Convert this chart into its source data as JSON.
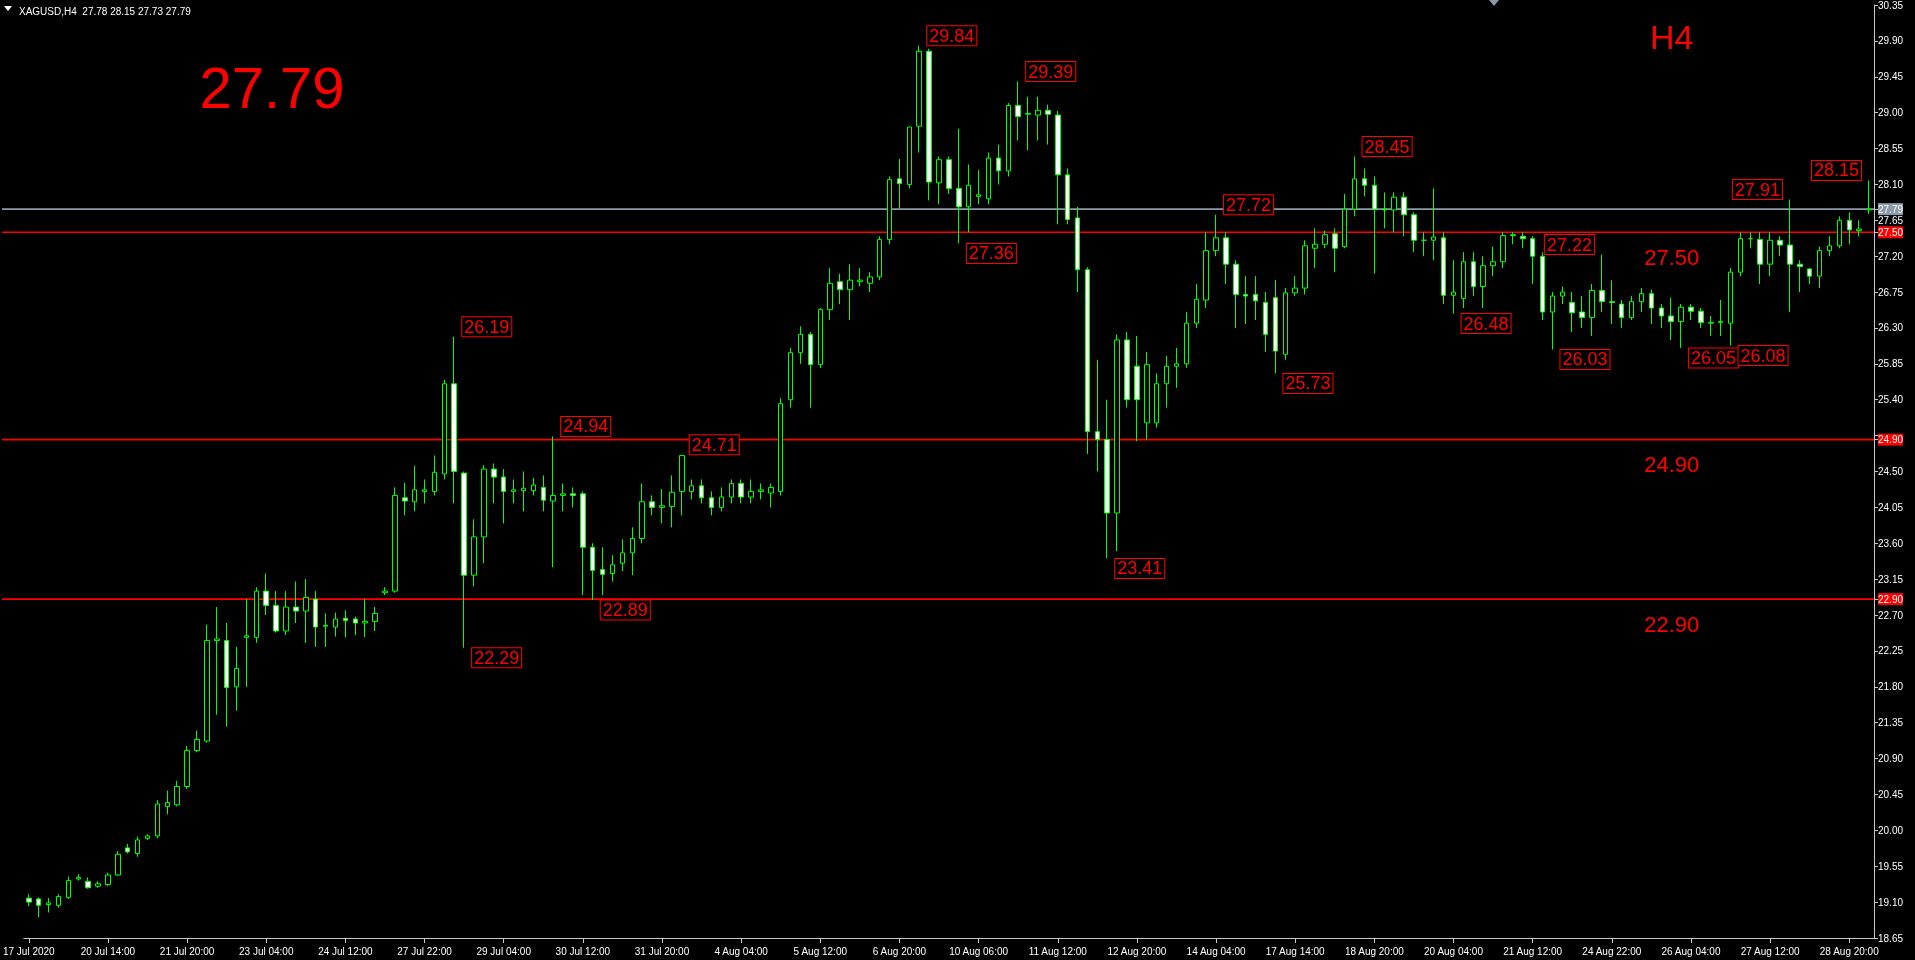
{
  "chart_data": {
    "type": "candlestick",
    "title": "XAGUSD,H4  27.78 28.15 27.73 27.79",
    "color": "#00ff00",
    "categories": [
      "17 Jul 2020",
      null,
      null,
      null,
      null,
      null,
      null,
      null,
      "20 Jul 14:00",
      null,
      null,
      null,
      null,
      null,
      null,
      null,
      "21 Jul 20:00",
      null,
      null,
      null,
      null,
      null,
      null,
      null,
      "23 Jul 04:00",
      null,
      null,
      null,
      null,
      null,
      null,
      null,
      "24 Jul 12:00",
      null,
      null,
      null,
      null,
      null,
      null,
      null,
      "27 Jul 22:00",
      null,
      null,
      null,
      null,
      null,
      null,
      null,
      "29 Jul 04:00",
      null,
      null,
      null,
      null,
      null,
      null,
      null,
      "30 Jul 12:00",
      null,
      null,
      null,
      null,
      null,
      null,
      null,
      "31 Jul 20:00",
      null,
      null,
      null,
      null,
      null,
      null,
      null,
      "4 Aug 04:00",
      null,
      null,
      null,
      null,
      null,
      null,
      null,
      "5 Aug 12:00",
      null,
      null,
      null,
      null,
      null,
      null,
      null,
      "6 Aug 20:00",
      null,
      null,
      null,
      null,
      null,
      null,
      null,
      "10 Aug 06:00",
      null,
      null,
      null,
      null,
      null,
      null,
      null,
      "11 Aug 12:00",
      null,
      null,
      null,
      null,
      null,
      null,
      null,
      "12 Aug 20:00",
      null,
      null,
      null,
      null,
      null,
      null,
      null,
      "14 Aug 04:00",
      null,
      null,
      null,
      null,
      null,
      null,
      null,
      "17 Aug 14:00",
      null,
      null,
      null,
      null,
      null,
      null,
      null,
      "18 Aug 20:00",
      null,
      null,
      null,
      null,
      null,
      null,
      null,
      "20 Aug 04:00",
      null,
      null,
      null,
      null,
      null,
      null,
      null,
      "21 Aug 12:00",
      null,
      null,
      null,
      null,
      null,
      null,
      null,
      "24 Aug 22:00",
      null,
      null,
      null,
      null,
      null,
      null,
      null,
      "26 Aug 04:00",
      null,
      null,
      null,
      null,
      null,
      null,
      null,
      "27 Aug 12:00",
      null,
      null,
      null,
      null,
      null,
      null,
      null,
      "28 Aug 20:00",
      null,
      null
    ],
    "ohlc": [
      [
        19.15,
        19.2,
        19.05,
        19.1
      ],
      [
        19.14,
        19.16,
        18.91,
        19.06
      ],
      [
        19.07,
        19.15,
        18.97,
        19.09
      ],
      [
        19.06,
        19.2,
        19.03,
        19.17
      ],
      [
        19.16,
        19.42,
        19.14,
        19.37
      ],
      [
        19.39,
        19.45,
        19.37,
        19.41
      ],
      [
        19.36,
        19.41,
        19.27,
        19.28
      ],
      [
        19.3,
        19.36,
        19.28,
        19.33
      ],
      [
        19.32,
        19.47,
        19.3,
        19.44
      ],
      [
        19.44,
        19.74,
        19.43,
        19.7
      ],
      [
        19.78,
        19.83,
        19.71,
        19.73
      ],
      [
        19.71,
        19.92,
        19.67,
        19.88
      ],
      [
        19.9,
        19.95,
        19.88,
        19.93
      ],
      [
        19.93,
        20.38,
        19.9,
        20.33
      ],
      [
        20.3,
        20.5,
        20.2,
        20.35
      ],
      [
        20.32,
        20.62,
        20.3,
        20.55
      ],
      [
        20.55,
        21.06,
        20.52,
        21.0
      ],
      [
        21.0,
        21.25,
        20.98,
        21.14
      ],
      [
        21.12,
        22.58,
        21.1,
        22.38
      ],
      [
        22.38,
        22.8,
        21.45,
        22.4
      ],
      [
        22.38,
        22.6,
        21.3,
        21.79
      ],
      [
        21.8,
        22.3,
        21.5,
        22.03
      ],
      [
        22.42,
        22.9,
        21.8,
        22.44
      ],
      [
        22.42,
        23.05,
        22.35,
        23.0
      ],
      [
        23.0,
        23.22,
        22.7,
        22.82
      ],
      [
        22.82,
        23.0,
        22.48,
        22.5
      ],
      [
        22.5,
        23.0,
        22.45,
        22.8
      ],
      [
        22.8,
        23.12,
        22.6,
        22.75
      ],
      [
        22.75,
        23.15,
        22.35,
        22.92
      ],
      [
        22.9,
        23.0,
        22.3,
        22.55
      ],
      [
        22.56,
        22.72,
        22.3,
        22.57
      ],
      [
        22.55,
        22.73,
        22.43,
        22.65
      ],
      [
        22.66,
        22.76,
        22.42,
        22.63
      ],
      [
        22.65,
        22.68,
        22.45,
        22.6
      ],
      [
        22.6,
        22.9,
        22.42,
        22.62
      ],
      [
        22.62,
        22.8,
        22.5,
        22.72
      ],
      [
        22.98,
        23.05,
        22.95,
        23.0
      ],
      [
        23.0,
        24.3,
        22.98,
        24.2
      ],
      [
        24.17,
        24.36,
        23.95,
        24.13
      ],
      [
        24.12,
        24.57,
        24.0,
        24.27
      ],
      [
        24.25,
        24.4,
        24.1,
        24.27
      ],
      [
        24.25,
        24.7,
        24.2,
        24.49
      ],
      [
        24.47,
        25.65,
        24.4,
        25.6
      ],
      [
        25.6,
        26.19,
        24.1,
        24.5
      ],
      [
        24.48,
        24.5,
        22.29,
        23.2
      ],
      [
        23.2,
        23.9,
        23.06,
        23.68
      ],
      [
        23.68,
        24.58,
        23.35,
        24.53
      ],
      [
        24.53,
        24.6,
        24.1,
        24.43
      ],
      [
        24.43,
        24.53,
        23.85,
        24.25
      ],
      [
        24.25,
        24.4,
        24.1,
        24.27
      ],
      [
        24.26,
        24.5,
        24.0,
        24.29
      ],
      [
        24.26,
        24.42,
        24.2,
        24.33
      ],
      [
        24.3,
        24.45,
        24.0,
        24.14
      ],
      [
        24.13,
        24.94,
        23.3,
        24.2
      ],
      [
        24.2,
        24.35,
        24.0,
        24.22
      ],
      [
        24.22,
        24.3,
        24.05,
        24.2
      ],
      [
        24.22,
        24.25,
        22.95,
        23.55
      ],
      [
        23.55,
        23.6,
        22.89,
        23.26
      ],
      [
        23.27,
        23.55,
        22.95,
        23.21
      ],
      [
        23.22,
        23.45,
        23.12,
        23.33
      ],
      [
        23.35,
        23.65,
        23.25,
        23.48
      ],
      [
        23.48,
        23.8,
        23.2,
        23.66
      ],
      [
        23.66,
        24.35,
        23.6,
        24.12
      ],
      [
        24.12,
        24.2,
        23.95,
        24.05
      ],
      [
        24.05,
        24.28,
        23.85,
        24.07
      ],
      [
        24.06,
        24.45,
        23.8,
        24.24
      ],
      [
        24.25,
        24.71,
        23.95,
        24.7
      ],
      [
        24.25,
        24.4,
        24.15,
        24.32
      ],
      [
        24.32,
        24.4,
        24.1,
        24.17
      ],
      [
        24.17,
        24.25,
        23.95,
        24.05
      ],
      [
        24.05,
        24.3,
        24.0,
        24.18
      ],
      [
        24.18,
        24.4,
        24.1,
        24.35
      ],
      [
        24.35,
        24.4,
        24.1,
        24.18
      ],
      [
        24.18,
        24.4,
        24.1,
        24.25
      ],
      [
        24.25,
        24.35,
        24.15,
        24.27
      ],
      [
        24.23,
        24.35,
        24.05,
        24.3
      ],
      [
        24.25,
        25.42,
        24.2,
        25.35
      ],
      [
        25.4,
        26.05,
        25.3,
        25.99
      ],
      [
        25.99,
        26.32,
        25.85,
        26.22
      ],
      [
        26.22,
        26.25,
        25.3,
        25.84
      ],
      [
        25.84,
        26.55,
        25.8,
        26.53
      ],
      [
        26.53,
        27.05,
        26.4,
        26.86
      ],
      [
        26.88,
        26.98,
        26.6,
        26.78
      ],
      [
        26.78,
        27.1,
        26.4,
        26.9
      ],
      [
        26.88,
        27.05,
        26.82,
        26.9
      ],
      [
        26.86,
        27.0,
        26.75,
        26.94
      ],
      [
        26.94,
        27.45,
        26.9,
        27.41
      ],
      [
        27.41,
        28.2,
        27.35,
        28.16
      ],
      [
        28.17,
        28.42,
        27.8,
        28.11
      ],
      [
        28.1,
        28.82,
        28.05,
        28.82
      ],
      [
        28.83,
        29.84,
        28.5,
        29.77
      ],
      [
        29.77,
        29.8,
        27.9,
        28.13
      ],
      [
        28.12,
        28.45,
        27.85,
        28.41
      ],
      [
        28.41,
        28.45,
        27.98,
        28.05
      ],
      [
        28.05,
        28.8,
        27.36,
        27.82
      ],
      [
        27.82,
        28.35,
        27.5,
        28.09
      ],
      [
        27.95,
        28.28,
        27.85,
        27.97
      ],
      [
        27.92,
        28.5,
        27.85,
        28.43
      ],
      [
        28.43,
        28.6,
        28.1,
        28.27
      ],
      [
        28.27,
        29.12,
        28.2,
        29.09
      ],
      [
        29.09,
        29.39,
        28.65,
        28.95
      ],
      [
        28.98,
        29.2,
        28.53,
        28.99
      ],
      [
        28.97,
        29.2,
        28.65,
        29.03
      ],
      [
        29.03,
        29.1,
        28.6,
        28.98
      ],
      [
        28.97,
        29.02,
        27.6,
        28.22
      ],
      [
        28.22,
        28.3,
        27.6,
        27.66
      ],
      [
        27.68,
        27.82,
        26.75,
        27.03
      ],
      [
        27.03,
        27.06,
        24.72,
        25.0
      ],
      [
        25.0,
        25.9,
        24.5,
        24.9
      ],
      [
        24.9,
        25.4,
        23.41,
        23.98
      ],
      [
        23.98,
        26.22,
        23.5,
        26.15
      ],
      [
        26.15,
        26.25,
        25.3,
        25.4
      ],
      [
        25.82,
        26.2,
        24.88,
        25.4
      ],
      [
        25.11,
        26.0,
        24.9,
        25.84
      ],
      [
        25.11,
        25.73,
        25.05,
        25.6
      ],
      [
        25.6,
        25.95,
        25.3,
        25.82
      ],
      [
        25.82,
        26.05,
        25.55,
        25.85
      ],
      [
        25.85,
        26.5,
        25.8,
        26.36
      ],
      [
        26.36,
        26.85,
        26.3,
        26.66
      ],
      [
        26.65,
        27.5,
        26.55,
        27.27
      ],
      [
        27.27,
        27.72,
        27.2,
        27.43
      ],
      [
        27.43,
        27.5,
        26.85,
        27.1
      ],
      [
        27.1,
        27.15,
        26.3,
        26.72
      ],
      [
        26.72,
        26.95,
        26.35,
        26.7
      ],
      [
        26.72,
        26.95,
        26.4,
        26.64
      ],
      [
        26.62,
        26.75,
        26.0,
        26.22
      ],
      [
        26.68,
        26.9,
        25.73,
        26.01
      ],
      [
        25.97,
        26.8,
        25.9,
        26.74
      ],
      [
        26.74,
        26.95,
        26.7,
        26.8
      ],
      [
        26.8,
        27.4,
        26.72,
        27.33
      ],
      [
        27.3,
        27.55,
        27.05,
        27.35
      ],
      [
        27.35,
        27.52,
        27.3,
        27.47
      ],
      [
        27.48,
        27.55,
        27.0,
        27.3
      ],
      [
        27.32,
        27.98,
        27.3,
        27.79
      ],
      [
        27.79,
        28.45,
        27.7,
        28.17
      ],
      [
        28.17,
        28.3,
        27.95,
        28.09
      ],
      [
        28.09,
        28.2,
        26.98,
        27.79
      ],
      [
        27.79,
        28.0,
        27.55,
        27.78
      ],
      [
        27.78,
        28.0,
        27.5,
        27.94
      ],
      [
        27.94,
        28.0,
        27.45,
        27.72
      ],
      [
        27.72,
        27.75,
        27.25,
        27.4
      ],
      [
        27.4,
        27.5,
        27.2,
        27.4
      ],
      [
        27.4,
        28.05,
        27.15,
        27.44
      ],
      [
        27.43,
        27.5,
        26.6,
        26.71
      ],
      [
        26.71,
        27.15,
        26.48,
        26.75
      ],
      [
        26.67,
        27.25,
        26.55,
        27.13
      ],
      [
        27.13,
        27.25,
        26.7,
        26.82
      ],
      [
        26.82,
        27.2,
        26.55,
        27.08
      ],
      [
        27.08,
        27.32,
        26.95,
        27.13
      ],
      [
        27.13,
        27.5,
        27.05,
        27.46
      ],
      [
        27.46,
        27.5,
        27.35,
        27.47
      ],
      [
        27.45,
        27.5,
        27.3,
        27.42
      ],
      [
        27.42,
        27.45,
        26.85,
        27.2
      ],
      [
        27.2,
        27.25,
        26.4,
        26.5
      ],
      [
        26.5,
        26.75,
        26.03,
        26.7
      ],
      [
        26.7,
        26.82,
        26.6,
        26.75
      ],
      [
        26.62,
        26.75,
        26.25,
        26.49
      ],
      [
        26.5,
        26.7,
        26.3,
        26.43
      ],
      [
        26.43,
        26.85,
        26.2,
        26.77
      ],
      [
        26.77,
        27.22,
        26.5,
        26.63
      ],
      [
        26.63,
        26.9,
        26.35,
        26.62
      ],
      [
        26.6,
        26.65,
        26.3,
        26.43
      ],
      [
        26.43,
        26.7,
        26.4,
        26.63
      ],
      [
        26.63,
        26.8,
        26.5,
        26.73
      ],
      [
        26.73,
        26.78,
        26.35,
        26.55
      ],
      [
        26.55,
        26.6,
        26.3,
        26.45
      ],
      [
        26.45,
        26.68,
        26.15,
        26.38
      ],
      [
        26.38,
        26.6,
        26.05,
        26.56
      ],
      [
        26.56,
        26.6,
        26.4,
        26.51
      ],
      [
        26.51,
        26.55,
        26.3,
        26.37
      ],
      [
        26.36,
        26.45,
        26.2,
        26.37
      ],
      [
        26.37,
        26.65,
        26.2,
        26.38
      ],
      [
        26.36,
        27.05,
        26.08,
        27.0
      ],
      [
        27.0,
        27.5,
        26.95,
        27.42
      ],
      [
        27.42,
        27.5,
        27.3,
        27.42
      ],
      [
        27.41,
        27.5,
        26.85,
        27.1
      ],
      [
        27.1,
        27.5,
        26.95,
        27.4
      ],
      [
        27.4,
        27.45,
        27.2,
        27.34
      ],
      [
        27.34,
        27.91,
        26.5,
        27.1
      ],
      [
        27.1,
        27.15,
        26.75,
        27.07
      ],
      [
        27.04,
        27.05,
        26.85,
        26.95
      ],
      [
        26.95,
        27.32,
        26.8,
        27.27
      ],
      [
        27.27,
        27.45,
        27.2,
        27.33
      ],
      [
        27.33,
        27.7,
        27.3,
        27.65
      ],
      [
        27.65,
        27.75,
        27.35,
        27.53
      ],
      [
        27.52,
        27.65,
        27.45,
        27.54
      ],
      [
        27.78,
        28.15,
        27.73,
        27.79
      ]
    ],
    "ylim": [
      18.65,
      30.35
    ],
    "yticks": [
      18.65,
      {
        "value": 19.1,
        "label": "19.10"
      },
      19.55,
      {
        "value": 20.0,
        "label": "20.00"
      },
      20.45,
      {
        "value": 20.9,
        "label": "20.90"
      },
      21.35,
      {
        "value": 21.8,
        "label": "21.80"
      },
      22.25,
      {
        "value": 22.7,
        "label": "22.70"
      },
      {
        "value": 22.9,
        "label": "22.90"
      },
      23.15,
      {
        "value": 23.6,
        "label": "23.60"
      },
      24.05,
      {
        "value": 24.5,
        "label": "24.50"
      },
      {
        "value": 24.9,
        "label": "24.90"
      },
      {
        "value": 24.95,
        "label": null
      },
      {
        "value": 25.4,
        "label": "25.40"
      },
      25.85,
      {
        "value": 26.3,
        "label": "26.30"
      },
      26.75,
      {
        "value": 27.2,
        "label": "27.20"
      },
      {
        "value": 27.5,
        "label": "27.50"
      },
      27.65,
      27.79,
      {
        "value": 28.1,
        "label": "28.10"
      },
      28.55,
      {
        "value": 29.0,
        "label": "29.00"
      },
      29.45,
      {
        "value": 29.9,
        "label": "29.90"
      },
      30.35
    ],
    "ref_lines": [
      {
        "axis": "y",
        "value": 27.79,
        "color": "#8a9aa8"
      },
      {
        "axis": "y",
        "value": 27.5,
        "label": "27.50",
        "color": "#ff0000"
      },
      {
        "axis": "y",
        "value": 24.9,
        "label": "24.90",
        "color": "#ff0000"
      },
      {
        "axis": "y",
        "value": 22.9,
        "label": "22.90",
        "color": "#ff0000"
      }
    ],
    "annotations": [
      "27.79",
      "H4"
    ],
    "value_labels": [
      null,
      null,
      null,
      null,
      null,
      null,
      null,
      null,
      null,
      null,
      null,
      null,
      null,
      null,
      null,
      null,
      null,
      null,
      null,
      null,
      null,
      null,
      null,
      null,
      null,
      null,
      null,
      null,
      null,
      null,
      null,
      null,
      null,
      null,
      null,
      null,
      null,
      null,
      null,
      null,
      null,
      null,
      null,
      "26.19",
      "22.29",
      null,
      null,
      null,
      null,
      null,
      null,
      null,
      null,
      "24.94",
      null,
      null,
      null,
      "22.89",
      null,
      null,
      null,
      null,
      null,
      null,
      null,
      null,
      "24.71",
      null,
      null,
      null,
      null,
      null,
      null,
      null,
      null,
      null,
      null,
      null,
      null,
      null,
      null,
      null,
      null,
      null,
      null,
      null,
      null,
      null,
      null,
      null,
      "29.84",
      null,
      null,
      null,
      "27.36",
      null,
      null,
      null,
      null,
      null,
      "29.39",
      null,
      null,
      null,
      null,
      null,
      null,
      null,
      null,
      "23.41",
      null,
      null,
      null,
      null,
      null,
      null,
      null,
      null,
      null,
      null,
      "27.72",
      null,
      null,
      null,
      null,
      null,
      "25.73",
      null,
      null,
      null,
      null,
      null,
      null,
      null,
      "28.45",
      null,
      null,
      null,
      null,
      null,
      null,
      null,
      null,
      null,
      "26.48",
      null,
      null,
      null,
      null,
      null,
      null,
      null,
      null,
      null,
      "26.03",
      null,
      null,
      null,
      null,
      "27.22",
      null,
      null,
      null,
      null,
      null,
      null,
      null,
      "26.05",
      null,
      null,
      null,
      null,
      "26.08",
      null,
      null,
      null,
      null,
      null,
      "27.91",
      null,
      null,
      null,
      null,
      null,
      null,
      null,
      "28.15"
    ]
  }
}
